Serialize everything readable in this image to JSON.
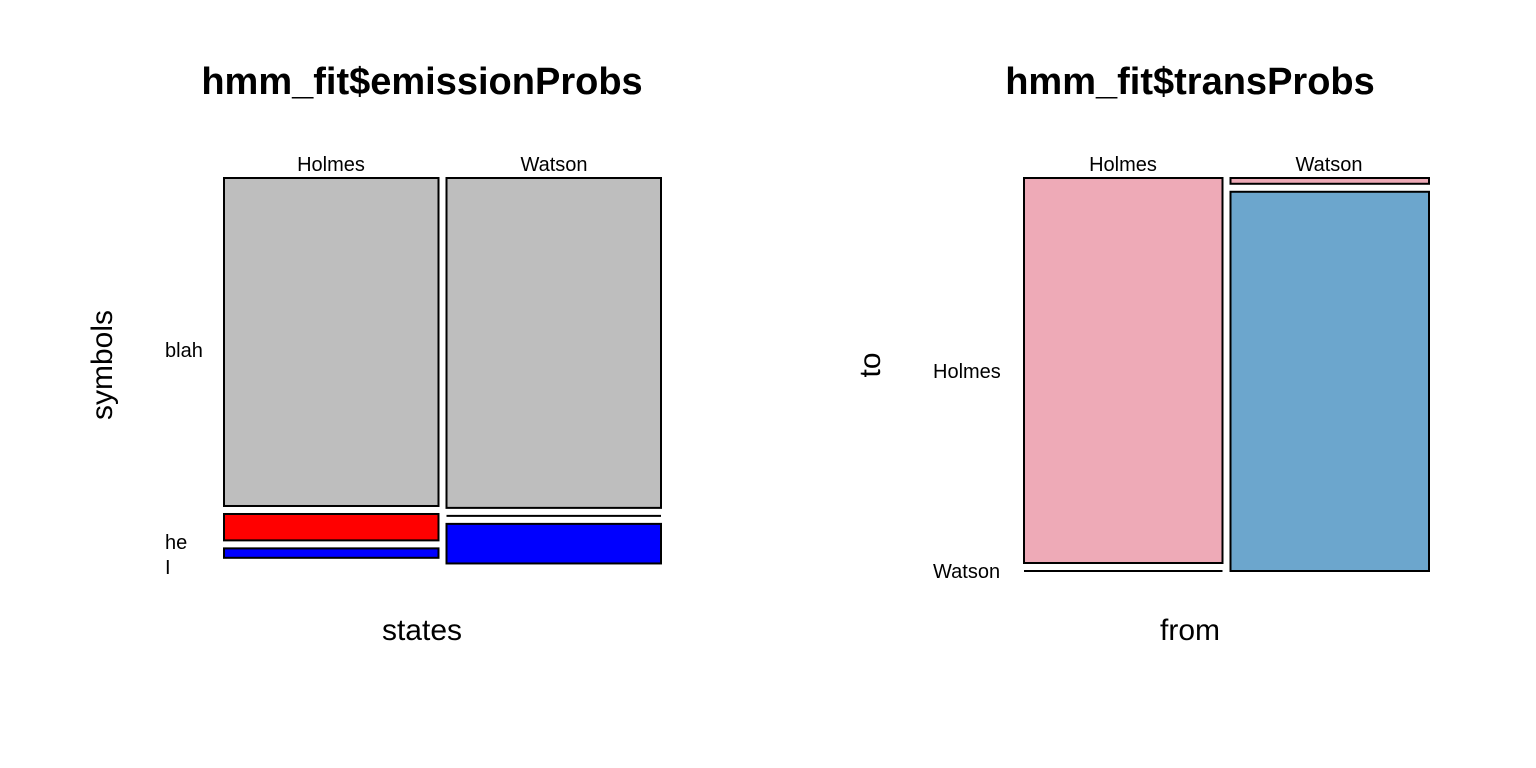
{
  "chart_data": [
    {
      "type": "mosaic",
      "title": "hmm_fit$emissionProbs",
      "xlabel": "states",
      "ylabel": "symbols",
      "x_categories": [
        "Holmes",
        "Watson"
      ],
      "y_categories": [
        "blah",
        "he",
        "I"
      ],
      "x_proportions": [
        0.5,
        0.5
      ],
      "proportions": [
        {
          "x": "Holmes",
          "values": {
            "blah": 0.87,
            "he": 0.07,
            "I": 0.025
          }
        },
        {
          "x": "Watson",
          "values": {
            "blah": 0.875,
            "he": 0.0,
            "I": 0.105
          }
        }
      ],
      "colors": {
        "blah": "#bebebe",
        "he": "#ff0000",
        "I": "#0000ff"
      },
      "cell_colors": {
        "Holmes": {
          "blah": "#bebebe",
          "he": "#ff0000",
          "I": "#0000ff"
        },
        "Watson": {
          "blah": "#bebebe",
          "he": "#ff0000",
          "I": "#0000ff"
        }
      }
    },
    {
      "type": "mosaic",
      "title": "hmm_fit$transProbs",
      "xlabel": "from",
      "ylabel": "to",
      "x_categories": [
        "Holmes",
        "Watson"
      ],
      "y_categories": [
        "Holmes",
        "Watson"
      ],
      "x_proportions": [
        0.5,
        0.5
      ],
      "proportions": [
        {
          "x": "Holmes",
          "values": {
            "Holmes": 1.0,
            "Watson": 0.0
          }
        },
        {
          "x": "Watson",
          "values": {
            "Holmes": 0.015,
            "Watson": 0.985
          }
        }
      ],
      "cell_colors": {
        "Holmes": {
          "Holmes": "#eeaab7",
          "Watson": "#eeaab7"
        },
        "Watson": {
          "Holmes": "#eeaab7",
          "Watson": "#6ca6cd"
        }
      }
    }
  ]
}
